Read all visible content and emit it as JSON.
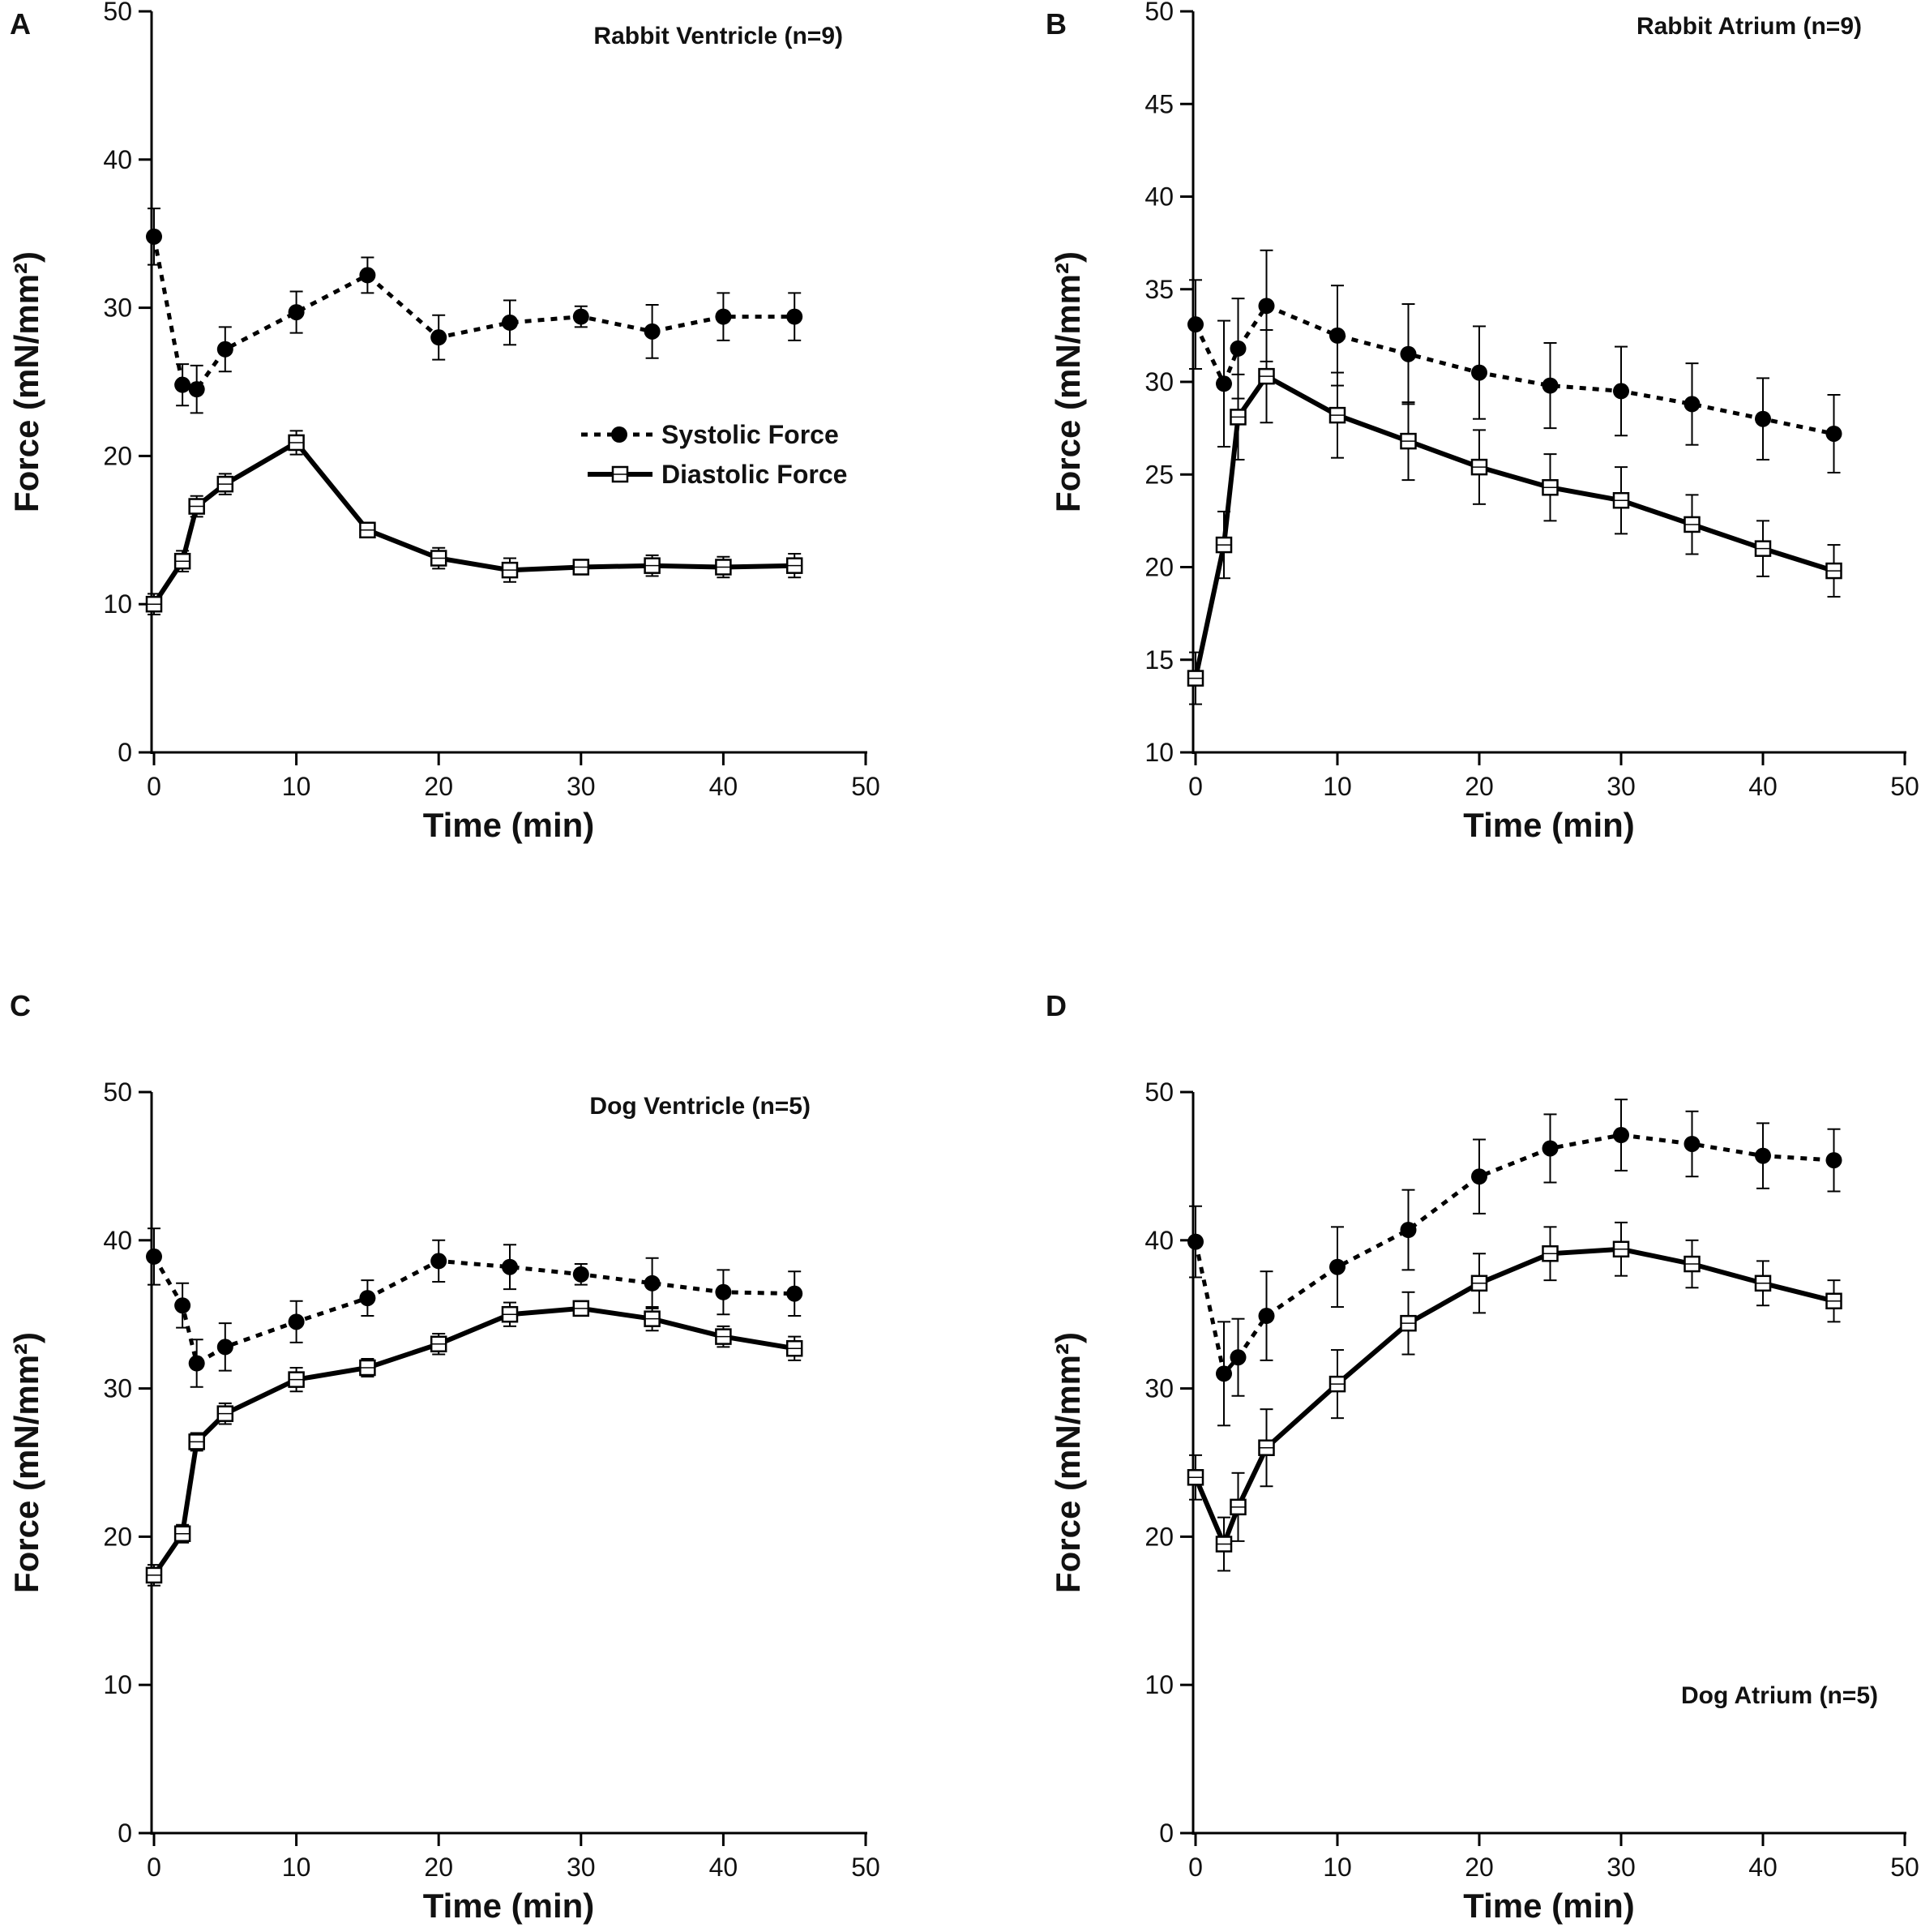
{
  "chart_data": [
    {
      "type": "line",
      "panel_label": "A",
      "title": "Rabbit Ventricle (n=9)",
      "title_position": "top-right",
      "xlabel": "Time (min)",
      "ylabel": "Force (mN/mm²)",
      "xlim": [
        0,
        50
      ],
      "ylim": [
        0,
        50
      ],
      "xticks": [
        0,
        10,
        20,
        30,
        40,
        50
      ],
      "xtick_labels": [
        "0",
        "10",
        "20",
        "30",
        "40",
        "50"
      ],
      "yticks": [
        0,
        10,
        20,
        30,
        40,
        50
      ],
      "ytick_labels": [
        "0",
        "10",
        "20",
        "30",
        "40",
        "50"
      ],
      "x": [
        0,
        2,
        3,
        5,
        10,
        15,
        20,
        25,
        30,
        35,
        40,
        45
      ],
      "legend": {
        "position": "middle-right",
        "entries": [
          "Systolic Force",
          "Diastolic Force"
        ]
      },
      "series": [
        {
          "name": "Systolic Force",
          "style": "dotted",
          "marker": "filled-circle",
          "values": [
            34.8,
            24.8,
            24.5,
            27.2,
            29.7,
            32.2,
            28.0,
            29.0,
            29.4,
            28.4,
            29.4,
            29.4
          ],
          "errors": [
            1.9,
            1.4,
            1.6,
            1.5,
            1.4,
            1.2,
            1.5,
            1.5,
            0.7,
            1.8,
            1.6,
            1.6
          ]
        },
        {
          "name": "Diastolic Force",
          "style": "solid",
          "marker": "open-square",
          "values": [
            10.0,
            12.9,
            16.6,
            18.1,
            20.9,
            15.0,
            13.1,
            12.3,
            12.5,
            12.6,
            12.5,
            12.6
          ],
          "errors": [
            0.7,
            0.7,
            0.7,
            0.7,
            0.8,
            0.5,
            0.7,
            0.8,
            0.5,
            0.7,
            0.7,
            0.8
          ]
        }
      ]
    },
    {
      "type": "line",
      "panel_label": "B",
      "title": "Rabbit Atrium (n=9)",
      "title_position": "top-right",
      "xlabel": "Time (min)",
      "ylabel": "Force (mN/mm²)",
      "xlim": [
        0,
        50
      ],
      "ylim": [
        10,
        50
      ],
      "xticks": [
        0,
        10,
        20,
        30,
        40,
        50
      ],
      "xtick_labels": [
        "0",
        "10",
        "20",
        "30",
        "40",
        "50"
      ],
      "yticks": [
        10,
        15,
        20,
        25,
        30,
        35,
        40,
        45,
        50
      ],
      "ytick_labels": [
        "10",
        "15",
        "20",
        "25",
        "30",
        "35",
        "40",
        "45",
        "50"
      ],
      "x": [
        0,
        2,
        3,
        5,
        10,
        15,
        20,
        25,
        30,
        35,
        40,
        45
      ],
      "series": [
        {
          "name": "Systolic Force",
          "style": "dotted",
          "marker": "filled-circle",
          "values": [
            33.1,
            29.9,
            31.8,
            34.1,
            32.5,
            31.5,
            30.5,
            29.8,
            29.5,
            28.8,
            28.0,
            27.2
          ],
          "errors": [
            2.4,
            3.4,
            2.7,
            3.0,
            2.7,
            2.7,
            2.5,
            2.3,
            2.4,
            2.2,
            2.2,
            2.1
          ]
        },
        {
          "name": "Diastolic Force",
          "style": "solid",
          "marker": "open-square",
          "values": [
            14.0,
            21.2,
            28.1,
            30.3,
            28.2,
            26.8,
            25.4,
            24.3,
            23.6,
            22.3,
            21.0,
            19.8
          ],
          "errors": [
            1.4,
            1.8,
            2.3,
            2.5,
            2.3,
            2.1,
            2.0,
            1.8,
            1.8,
            1.6,
            1.5,
            1.4
          ]
        }
      ]
    },
    {
      "type": "line",
      "panel_label": "C",
      "title": "Dog Ventricle (n=5)",
      "title_position": "top-right",
      "xlabel": "Time (min)",
      "ylabel": "Force (mN/mm²)",
      "xlim": [
        0,
        50
      ],
      "ylim": [
        0,
        50
      ],
      "xticks": [
        0,
        10,
        20,
        30,
        40,
        50
      ],
      "xtick_labels": [
        "0",
        "10",
        "20",
        "30",
        "40",
        "50"
      ],
      "yticks": [
        0,
        10,
        20,
        30,
        40,
        50
      ],
      "ytick_labels": [
        "0",
        "10",
        "20",
        "30",
        "40",
        "50"
      ],
      "x": [
        0,
        2,
        3,
        5,
        10,
        15,
        20,
        25,
        30,
        35,
        40,
        45
      ],
      "series": [
        {
          "name": "Systolic Force",
          "style": "dotted",
          "marker": "filled-circle",
          "values": [
            38.9,
            35.6,
            31.7,
            32.8,
            34.5,
            36.1,
            38.6,
            38.2,
            37.7,
            37.1,
            36.5,
            36.4
          ],
          "errors": [
            1.9,
            1.5,
            1.6,
            1.6,
            1.4,
            1.2,
            1.4,
            1.5,
            0.7,
            1.7,
            1.5,
            1.5
          ]
        },
        {
          "name": "Diastolic Force",
          "style": "solid",
          "marker": "open-square",
          "values": [
            17.4,
            20.2,
            26.4,
            28.3,
            30.6,
            31.4,
            33.0,
            35.0,
            35.4,
            34.7,
            33.5,
            32.7
          ],
          "errors": [
            0.7,
            0.6,
            0.6,
            0.7,
            0.8,
            0.6,
            0.7,
            0.8,
            0.5,
            0.8,
            0.7,
            0.8
          ]
        }
      ]
    },
    {
      "type": "line",
      "panel_label": "D",
      "title": "Dog Atrium (n=5)",
      "title_position": "bottom-right",
      "xlabel": "Time (min)",
      "ylabel": "Force (mN/mm²)",
      "xlim": [
        0,
        50
      ],
      "ylim": [
        0,
        50
      ],
      "xticks": [
        0,
        10,
        20,
        30,
        40,
        50
      ],
      "xtick_labels": [
        "0",
        "10",
        "20",
        "30",
        "40",
        "50"
      ],
      "yticks": [
        0,
        10,
        20,
        30,
        40,
        50
      ],
      "ytick_labels": [
        "0",
        "10",
        "20",
        "30",
        "40",
        "50"
      ],
      "x": [
        0,
        2,
        3,
        5,
        10,
        15,
        20,
        25,
        30,
        35,
        40,
        45
      ],
      "series": [
        {
          "name": "Systolic Force",
          "style": "dotted",
          "marker": "filled-circle",
          "values": [
            39.9,
            31.0,
            32.1,
            34.9,
            38.2,
            40.7,
            44.3,
            46.2,
            47.1,
            46.5,
            45.7,
            45.4
          ],
          "errors": [
            2.4,
            3.5,
            2.6,
            3.0,
            2.7,
            2.7,
            2.5,
            2.3,
            2.4,
            2.2,
            2.2,
            2.1
          ]
        },
        {
          "name": "Diastolic Force",
          "style": "solid",
          "marker": "open-square",
          "values": [
            24.0,
            19.5,
            22.0,
            26.0,
            30.3,
            34.4,
            37.1,
            39.1,
            39.4,
            38.4,
            37.1,
            35.9
          ],
          "errors": [
            1.5,
            1.8,
            2.3,
            2.6,
            2.3,
            2.1,
            2.0,
            1.8,
            1.8,
            1.6,
            1.5,
            1.4
          ]
        }
      ]
    }
  ]
}
